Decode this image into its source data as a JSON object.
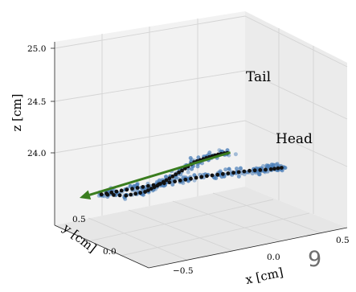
{
  "chart_data": {
    "type": "scatter",
    "projection": "3d",
    "grid": true,
    "xlabel": "x [cm]",
    "ylabel": "y [cm]",
    "zlabel": "z [cm]",
    "x_ticks": [
      "−0.5",
      "0.0",
      "0.5"
    ],
    "y_ticks": [
      "0.0",
      "0.5"
    ],
    "z_ticks": [
      "24.0",
      "24.5",
      "25.0"
    ],
    "annotations": [
      "Tail",
      "Head"
    ],
    "panel_label": "9",
    "colors": {
      "points": "#4c7fb8",
      "centerline": "#111111",
      "arrow": "#3a7d1f",
      "pane_left": "#f2f2f2",
      "pane_right": "#ebebeb",
      "grid": "#d4d4d4"
    },
    "series": [
      {
        "role": "tail-arm-centerline",
        "x": [
          -0.74,
          -0.55,
          -0.4,
          -0.3,
          -0.2,
          -0.1,
          0.0,
          0.1,
          0.2,
          0.3
        ],
        "y": [
          0.48,
          0.5,
          0.52,
          0.55,
          0.58,
          0.6,
          0.63,
          0.66,
          0.7,
          0.73
        ],
        "z": [
          23.93,
          23.96,
          24.03,
          24.12,
          24.22,
          24.32,
          24.43,
          24.5,
          24.57,
          24.62
        ]
      },
      {
        "role": "head-arm-centerline",
        "x": [
          -0.74,
          -0.6,
          -0.45,
          -0.3,
          -0.15,
          0.0,
          0.15,
          0.3,
          0.45,
          0.55
        ],
        "y": [
          0.48,
          0.44,
          0.4,
          0.36,
          0.32,
          0.28,
          0.24,
          0.2,
          0.16,
          0.13
        ],
        "z": [
          23.93,
          23.97,
          24.01,
          24.05,
          24.09,
          24.13,
          24.16,
          24.19,
          24.21,
          24.23
        ]
      }
    ],
    "arrow": {
      "from": {
        "x": 0.3,
        "y": 0.73,
        "z": 24.62
      },
      "to": {
        "x": -0.9,
        "y": 0.5,
        "z": 23.88
      }
    }
  }
}
